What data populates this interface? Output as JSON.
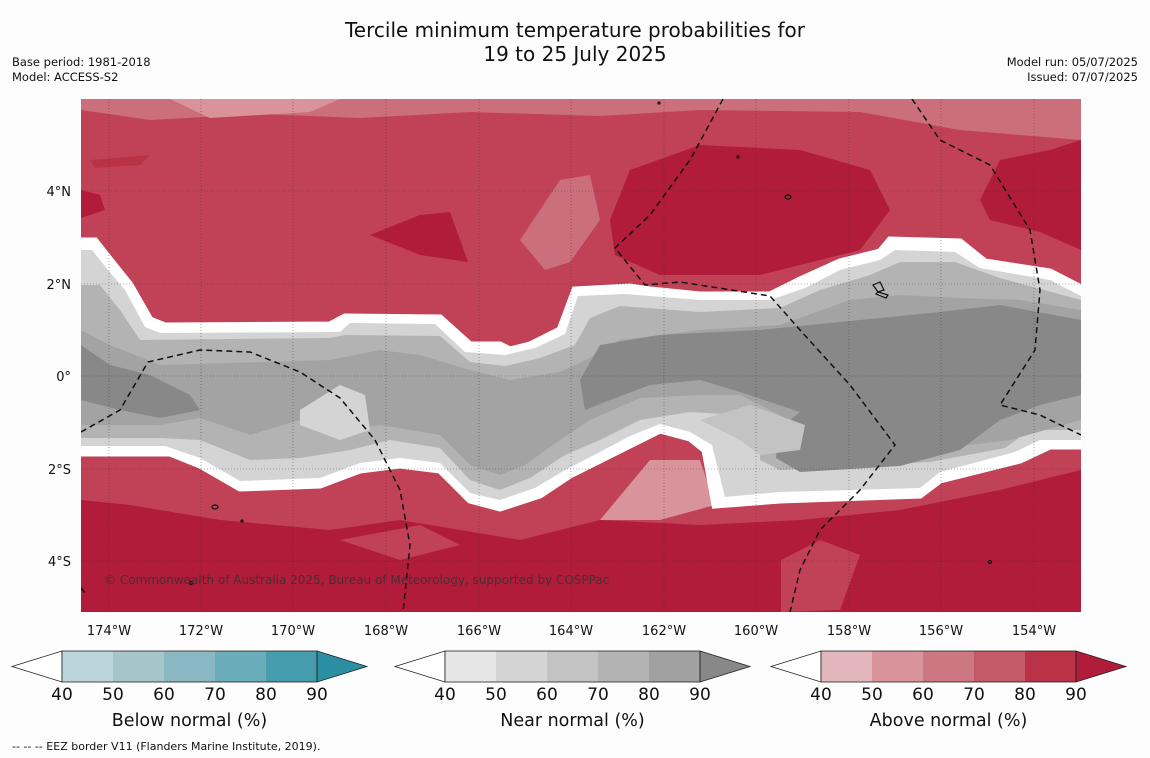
{
  "title": {
    "line1": "Tercile minimum temperature probabilities for",
    "line2": "19 to 25 July 2025"
  },
  "meta_left": {
    "base_period": "Base period: 1981-2018",
    "model": "Model: ACCESS-S2"
  },
  "meta_right": {
    "model_run": "Model run: 05/07/2025",
    "issued": "Issued: 07/07/2025"
  },
  "copyright": "© Commonwealth of Australia 2025, Bureau of Meteorology, supported by COSPPac",
  "footnote": "--  --  -- EEZ border V11 (Flanders Marine Institute, 2019).",
  "map": {
    "lon_ticks": [
      "174°W",
      "172°W",
      "170°W",
      "168°W",
      "166°W",
      "164°W",
      "162°W",
      "160°W",
      "158°W",
      "156°W",
      "154°W"
    ],
    "lat_ticks": [
      "4°N",
      "2°N",
      "0°",
      "2°S",
      "4°S"
    ]
  },
  "colorbars": [
    {
      "title": "Below normal (%)",
      "ticks": [
        "40",
        "50",
        "60",
        "70",
        "80",
        "90"
      ],
      "colors": [
        "#ffffff",
        "#bcd4db",
        "#a5c5cb",
        "#8ab8c2",
        "#6aacb9",
        "#449cad",
        "#2b8fa3"
      ]
    },
    {
      "title": "Near normal (%)",
      "ticks": [
        "40",
        "50",
        "60",
        "70",
        "80",
        "90"
      ],
      "colors": [
        "#ffffff",
        "#e6e6e6",
        "#d4d4d4",
        "#c3c3c3",
        "#b3b3b3",
        "#a1a1a1",
        "#888888"
      ]
    },
    {
      "title": "Above normal (%)",
      "ticks": [
        "40",
        "50",
        "60",
        "70",
        "80",
        "90"
      ],
      "colors": [
        "#ffffff",
        "#e3b6bb",
        "#d8939b",
        "#cc7782",
        "#c35a65",
        "#b93245",
        "#b01c3a"
      ]
    }
  ]
}
